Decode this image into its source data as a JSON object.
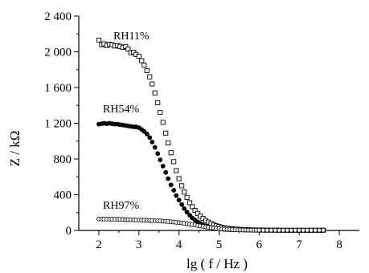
{
  "chart_data": {
    "type": "scatter",
    "xlabel": "lg ( f / Hz )",
    "ylabel": "Z / kΩ",
    "xlim": [
      1.5,
      8.5
    ],
    "ylim": [
      0,
      2400
    ],
    "x_ticks": [
      2,
      3,
      4,
      5,
      6,
      7,
      8
    ],
    "y_ticks": [
      0,
      400,
      800,
      1200,
      1600,
      2000,
      2400
    ],
    "y_tick_labels": [
      "0",
      "400",
      "800",
      "1 200",
      "1 600",
      "2 000",
      "2 400"
    ],
    "grid": false,
    "legend": "none",
    "series": [
      {
        "name": "RH11%",
        "marker": "open-square",
        "color": "#000000",
        "points": [
          [
            2.0,
            2130
          ],
          [
            2.07,
            2080
          ],
          [
            2.13,
            2090
          ],
          [
            2.2,
            2070
          ],
          [
            2.27,
            2085
          ],
          [
            2.33,
            2080
          ],
          [
            2.4,
            2065
          ],
          [
            2.47,
            2070
          ],
          [
            2.53,
            2060
          ],
          [
            2.6,
            2050
          ],
          [
            2.67,
            2060
          ],
          [
            2.73,
            2030
          ],
          [
            2.8,
            1990
          ],
          [
            2.87,
            1995
          ],
          [
            2.93,
            1970
          ],
          [
            3.0,
            1950
          ],
          [
            3.07,
            1900
          ],
          [
            3.13,
            1850
          ],
          [
            3.2,
            1790
          ],
          [
            3.27,
            1720
          ],
          [
            3.33,
            1640
          ],
          [
            3.4,
            1540
          ],
          [
            3.47,
            1430
          ],
          [
            3.53,
            1320
          ],
          [
            3.6,
            1210
          ],
          [
            3.67,
            1090
          ],
          [
            3.73,
            980
          ],
          [
            3.8,
            870
          ],
          [
            3.87,
            770
          ],
          [
            3.93,
            670
          ],
          [
            4.0,
            580
          ],
          [
            4.07,
            500
          ],
          [
            4.13,
            430
          ],
          [
            4.2,
            370
          ],
          [
            4.27,
            310
          ],
          [
            4.33,
            265
          ],
          [
            4.4,
            225
          ],
          [
            4.47,
            190
          ],
          [
            4.53,
            160
          ],
          [
            4.6,
            135
          ],
          [
            4.67,
            112
          ],
          [
            4.73,
            93
          ],
          [
            4.8,
            77
          ],
          [
            4.87,
            64
          ],
          [
            4.93,
            52
          ],
          [
            5.0,
            43
          ],
          [
            5.07,
            36
          ],
          [
            5.13,
            30
          ],
          [
            5.2,
            25
          ],
          [
            5.27,
            21
          ],
          [
            5.33,
            18
          ],
          [
            5.4,
            15
          ],
          [
            5.47,
            13
          ],
          [
            5.53,
            11
          ],
          [
            5.6,
            9
          ],
          [
            5.67,
            8
          ],
          [
            5.73,
            7
          ],
          [
            5.8,
            6
          ],
          [
            5.87,
            5
          ],
          [
            5.93,
            5
          ],
          [
            6.0,
            4
          ],
          [
            6.1,
            4
          ],
          [
            6.2,
            3
          ],
          [
            6.3,
            3
          ],
          [
            6.4,
            3
          ],
          [
            6.5,
            3
          ],
          [
            6.6,
            2
          ],
          [
            6.7,
            2
          ],
          [
            6.8,
            2
          ],
          [
            6.9,
            2
          ],
          [
            7.0,
            2
          ],
          [
            7.1,
            2
          ],
          [
            7.2,
            2
          ],
          [
            7.3,
            2
          ],
          [
            7.4,
            2
          ],
          [
            7.5,
            2
          ],
          [
            7.6,
            2
          ]
        ]
      },
      {
        "name": "RH54%",
        "marker": "filled-circle",
        "color": "#000000",
        "points": [
          [
            2.0,
            1190
          ],
          [
            2.07,
            1195
          ],
          [
            2.13,
            1200
          ],
          [
            2.2,
            1195
          ],
          [
            2.27,
            1200
          ],
          [
            2.33,
            1195
          ],
          [
            2.4,
            1190
          ],
          [
            2.47,
            1190
          ],
          [
            2.53,
            1185
          ],
          [
            2.6,
            1180
          ],
          [
            2.67,
            1175
          ],
          [
            2.73,
            1170
          ],
          [
            2.8,
            1165
          ],
          [
            2.87,
            1160
          ],
          [
            2.93,
            1160
          ],
          [
            3.0,
            1150
          ],
          [
            3.07,
            1130
          ],
          [
            3.13,
            1110
          ],
          [
            3.2,
            1080
          ],
          [
            3.27,
            1040
          ],
          [
            3.33,
            990
          ],
          [
            3.4,
            930
          ],
          [
            3.47,
            860
          ],
          [
            3.53,
            790
          ],
          [
            3.6,
            720
          ],
          [
            3.67,
            650
          ],
          [
            3.73,
            580
          ],
          [
            3.8,
            510
          ],
          [
            3.87,
            450
          ],
          [
            3.93,
            390
          ],
          [
            4.0,
            340
          ],
          [
            4.07,
            290
          ],
          [
            4.13,
            245
          ],
          [
            4.2,
            205
          ],
          [
            4.27,
            170
          ],
          [
            4.33,
            140
          ],
          [
            4.4,
            115
          ],
          [
            4.47,
            95
          ],
          [
            4.53,
            78
          ],
          [
            4.6,
            64
          ],
          [
            4.67,
            52
          ],
          [
            4.73,
            42
          ],
          [
            4.8,
            34
          ],
          [
            4.87,
            28
          ],
          [
            4.93,
            23
          ],
          [
            5.0,
            19
          ],
          [
            5.07,
            15
          ],
          [
            5.13,
            12
          ],
          [
            5.2,
            10
          ],
          [
            5.27,
            8
          ],
          [
            5.33,
            7
          ],
          [
            5.4,
            6
          ]
        ]
      },
      {
        "name": "RH97%",
        "marker": "open-circle",
        "color": "#000000",
        "points": [
          [
            2.0,
            128
          ],
          [
            2.07,
            128
          ],
          [
            2.13,
            127
          ],
          [
            2.2,
            127
          ],
          [
            2.27,
            126
          ],
          [
            2.33,
            126
          ],
          [
            2.4,
            125
          ],
          [
            2.47,
            125
          ],
          [
            2.53,
            124
          ],
          [
            2.6,
            123
          ],
          [
            2.67,
            122
          ],
          [
            2.73,
            121
          ],
          [
            2.8,
            120
          ],
          [
            2.87,
            119
          ],
          [
            2.93,
            118
          ],
          [
            3.0,
            117
          ],
          [
            3.07,
            116
          ],
          [
            3.13,
            115
          ],
          [
            3.2,
            113
          ],
          [
            3.27,
            112
          ],
          [
            3.33,
            111
          ],
          [
            3.4,
            109
          ],
          [
            3.47,
            108
          ],
          [
            3.53,
            106
          ],
          [
            3.6,
            104
          ],
          [
            3.67,
            102
          ],
          [
            3.73,
            99
          ],
          [
            3.8,
            97
          ],
          [
            3.87,
            94
          ],
          [
            3.93,
            91
          ],
          [
            4.0,
            88
          ],
          [
            4.07,
            84
          ],
          [
            4.13,
            80
          ],
          [
            4.2,
            76
          ],
          [
            4.27,
            71
          ],
          [
            4.33,
            66
          ],
          [
            4.4,
            61
          ],
          [
            4.47,
            55
          ],
          [
            4.53,
            50
          ],
          [
            4.6,
            45
          ],
          [
            4.67,
            40
          ],
          [
            4.73,
            35
          ],
          [
            4.8,
            31
          ],
          [
            4.87,
            27
          ],
          [
            4.93,
            23
          ],
          [
            5.0,
            20
          ],
          [
            5.07,
            17
          ],
          [
            5.13,
            15
          ],
          [
            5.2,
            13
          ],
          [
            5.27,
            11
          ],
          [
            5.33,
            9
          ],
          [
            5.4,
            8
          ],
          [
            5.47,
            7
          ],
          [
            5.53,
            6
          ],
          [
            5.6,
            5
          ],
          [
            5.67,
            5
          ],
          [
            5.73,
            4
          ],
          [
            5.8,
            4
          ],
          [
            5.87,
            3
          ],
          [
            5.93,
            3
          ],
          [
            6.0,
            3
          ],
          [
            6.1,
            2
          ],
          [
            6.2,
            2
          ],
          [
            6.3,
            2
          ],
          [
            6.4,
            2
          ],
          [
            6.5,
            2
          ],
          [
            6.6,
            2
          ],
          [
            6.7,
            2
          ],
          [
            6.8,
            2
          ],
          [
            6.9,
            2
          ],
          [
            7.0,
            2
          ],
          [
            7.1,
            2
          ],
          [
            7.2,
            2
          ],
          [
            7.3,
            2
          ],
          [
            7.4,
            2
          ],
          [
            7.5,
            2
          ],
          [
            7.6,
            2
          ]
        ]
      }
    ]
  }
}
